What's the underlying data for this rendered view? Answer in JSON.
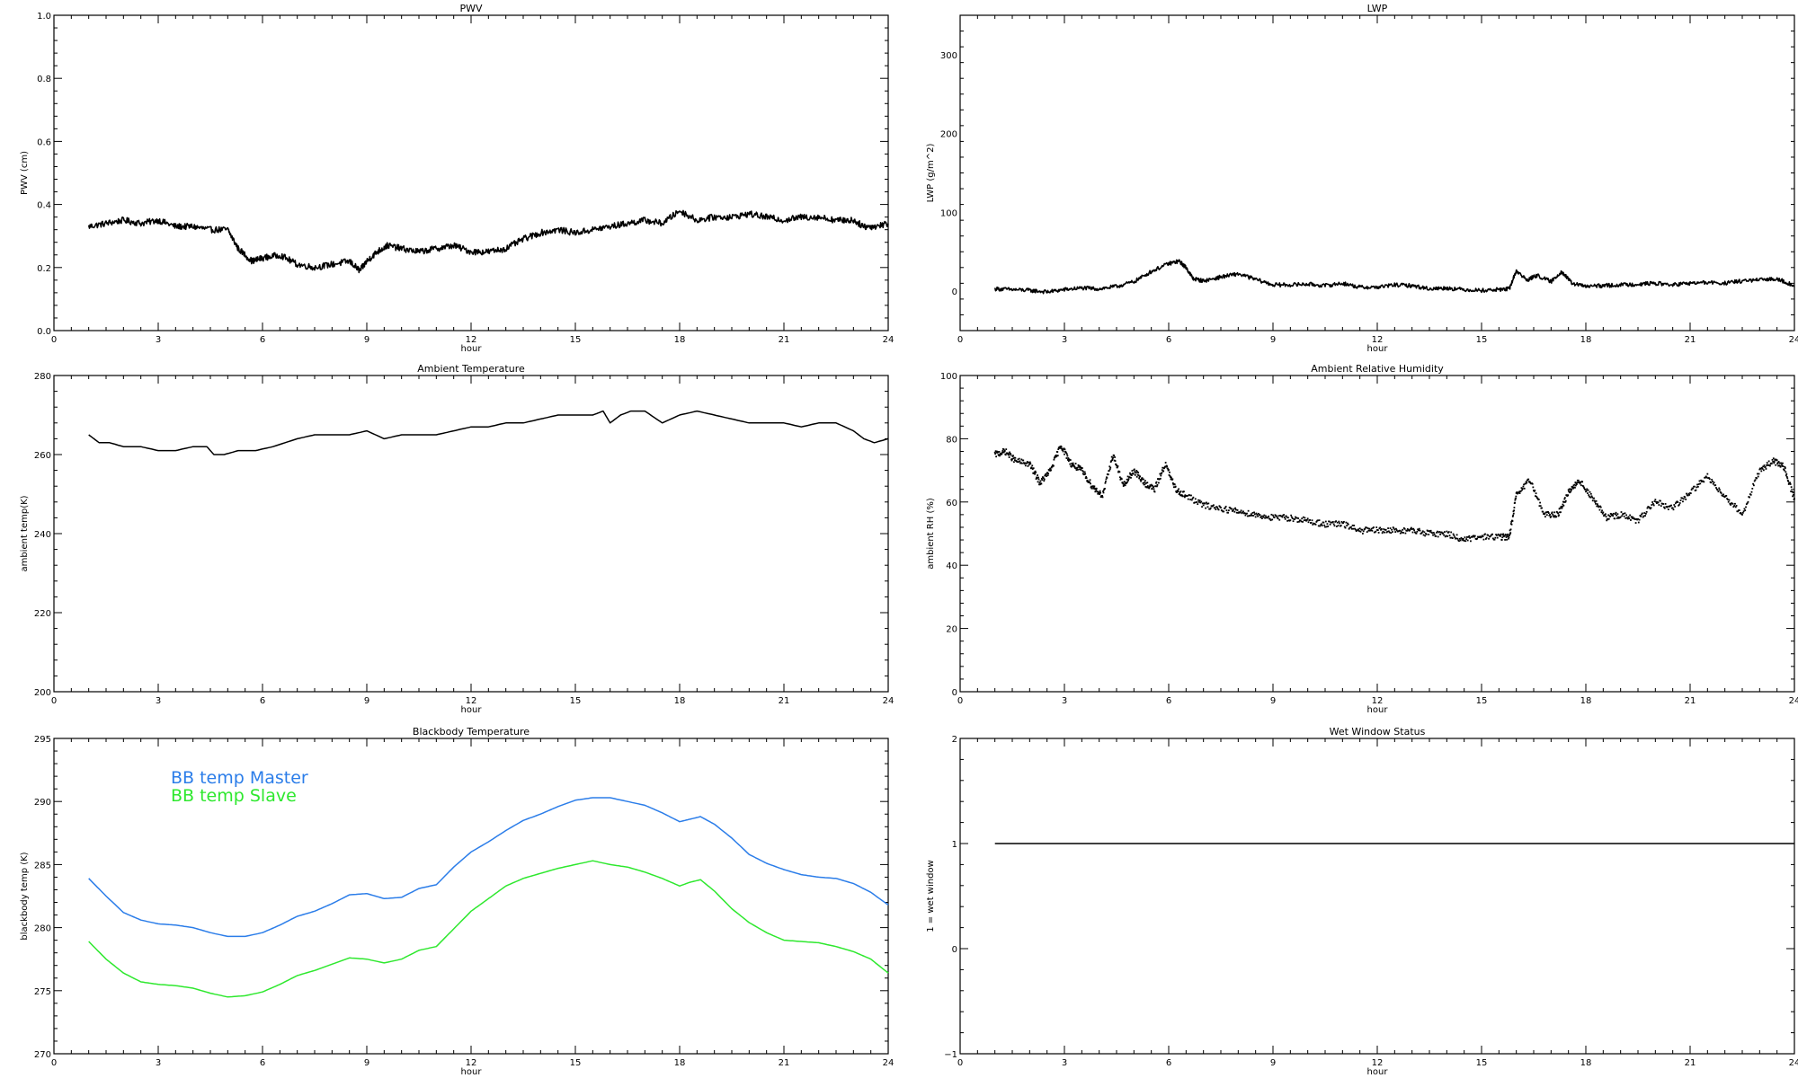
{
  "colors": {
    "black": "#000000",
    "bb_master": "#2b7de9",
    "bb_slave": "#2ee82e"
  },
  "chart_data": [
    {
      "id": "pwv",
      "type": "line",
      "title": "PWV",
      "xlabel": "hour",
      "ylabel": "PWV (cm)",
      "xlim": [
        0,
        24
      ],
      "ylim": [
        0.0,
        1.0
      ],
      "xticks": [
        0,
        3,
        6,
        9,
        12,
        15,
        18,
        21,
        24
      ],
      "xtick_labels": [
        "0",
        "3",
        "6",
        "9",
        "12",
        "15",
        "18",
        "21",
        "24"
      ],
      "yticks": [
        0.0,
        0.2,
        0.4,
        0.6,
        0.8,
        1.0
      ],
      "ytick_labels": [
        "0.0",
        "0.2",
        "0.4",
        "0.6",
        "0.8",
        "1.0"
      ],
      "noise": 0.01,
      "series": [
        {
          "color": "#000000",
          "x": [
            1.0,
            1.5,
            2.0,
            2.5,
            3.0,
            3.5,
            4.0,
            4.5,
            5.0,
            5.3,
            5.7,
            6.0,
            6.5,
            7.0,
            7.5,
            8.0,
            8.5,
            8.8,
            9.0,
            9.3,
            9.6,
            10.0,
            10.5,
            11.0,
            11.5,
            12.0,
            12.5,
            13.0,
            13.5,
            14.0,
            14.5,
            15.0,
            15.5,
            16.0,
            16.5,
            17.0,
            17.5,
            18.0,
            18.5,
            19.0,
            19.5,
            20.0,
            20.5,
            21.0,
            21.5,
            22.0,
            22.5,
            23.0,
            23.3,
            23.6,
            24.0
          ],
          "y": [
            0.33,
            0.34,
            0.35,
            0.34,
            0.35,
            0.33,
            0.33,
            0.32,
            0.32,
            0.26,
            0.22,
            0.23,
            0.24,
            0.21,
            0.2,
            0.21,
            0.22,
            0.19,
            0.22,
            0.25,
            0.27,
            0.26,
            0.25,
            0.26,
            0.27,
            0.25,
            0.25,
            0.26,
            0.29,
            0.31,
            0.32,
            0.31,
            0.32,
            0.33,
            0.34,
            0.35,
            0.34,
            0.38,
            0.35,
            0.36,
            0.36,
            0.37,
            0.36,
            0.35,
            0.36,
            0.36,
            0.35,
            0.35,
            0.33,
            0.33,
            0.34
          ]
        }
      ]
    },
    {
      "id": "lwp",
      "type": "line",
      "title": "LWP",
      "xlabel": "hour",
      "ylabel": "LWP (g/m^2)",
      "xlim": [
        0,
        24
      ],
      "ylim": [
        -50,
        350
      ],
      "xticks": [
        0,
        3,
        6,
        9,
        12,
        15,
        18,
        21,
        24
      ],
      "xtick_labels": [
        "0",
        "3",
        "6",
        "9",
        "12",
        "15",
        "18",
        "21",
        "24"
      ],
      "yticks": [
        0,
        100,
        200,
        300
      ],
      "ytick_labels": [
        "0",
        "100",
        "200",
        "300"
      ],
      "noise": 2.5,
      "series": [
        {
          "color": "#000000",
          "x": [
            1.0,
            1.5,
            2.0,
            2.5,
            3.0,
            3.5,
            4.0,
            4.5,
            5.0,
            5.5,
            6.0,
            6.3,
            6.5,
            6.7,
            7.0,
            7.5,
            8.0,
            8.5,
            9.0,
            9.5,
            10.0,
            10.5,
            11.0,
            11.5,
            12.0,
            12.5,
            13.0,
            13.5,
            14.0,
            14.5,
            15.0,
            15.5,
            15.8,
            16.0,
            16.3,
            16.6,
            17.0,
            17.3,
            17.6,
            18.0,
            18.5,
            19.0,
            19.5,
            20.0,
            20.5,
            21.0,
            21.5,
            22.0,
            22.5,
            23.0,
            23.5,
            24.0
          ],
          "y": [
            3,
            2,
            1,
            -1,
            2,
            4,
            3,
            6,
            12,
            25,
            35,
            38,
            30,
            16,
            13,
            18,
            22,
            15,
            8,
            8,
            9,
            7,
            10,
            5,
            5,
            8,
            7,
            3,
            4,
            2,
            1,
            2,
            3,
            26,
            14,
            20,
            12,
            25,
            10,
            6,
            7,
            8,
            9,
            10,
            8,
            10,
            11,
            10,
            13,
            14,
            16,
            7
          ]
        }
      ]
    },
    {
      "id": "ambient_temp",
      "type": "line",
      "title": "Ambient Temperature",
      "xlabel": "hour",
      "ylabel": "ambient temp(K)",
      "xlim": [
        0,
        24
      ],
      "ylim": [
        200,
        280
      ],
      "xticks": [
        0,
        3,
        6,
        9,
        12,
        15,
        18,
        21,
        24
      ],
      "xtick_labels": [
        "0",
        "3",
        "6",
        "9",
        "12",
        "15",
        "18",
        "21",
        "24"
      ],
      "yticks": [
        200,
        220,
        240,
        260,
        280
      ],
      "ytick_labels": [
        "200",
        "220",
        "240",
        "260",
        "280"
      ],
      "noise": 0,
      "series": [
        {
          "color": "#000000",
          "x": [
            1.0,
            1.3,
            1.6,
            2.0,
            2.5,
            3.0,
            3.5,
            4.0,
            4.4,
            4.6,
            4.9,
            5.3,
            5.8,
            6.3,
            7.0,
            7.5,
            8.0,
            8.5,
            9.0,
            9.5,
            10.0,
            10.5,
            11.0,
            11.5,
            12.0,
            12.5,
            13.0,
            13.5,
            14.0,
            14.5,
            15.0,
            15.5,
            15.8,
            16.0,
            16.3,
            16.6,
            17.0,
            17.5,
            18.0,
            18.5,
            19.0,
            19.5,
            20.0,
            20.5,
            21.0,
            21.5,
            22.0,
            22.5,
            23.0,
            23.3,
            23.6,
            24.0
          ],
          "y": [
            265,
            263,
            263,
            262,
            262,
            261,
            261,
            262,
            262,
            260,
            260,
            261,
            261,
            262,
            264,
            265,
            265,
            265,
            266,
            264,
            265,
            265,
            265,
            266,
            267,
            267,
            268,
            268,
            269,
            270,
            270,
            270,
            271,
            268,
            270,
            271,
            271,
            268,
            270,
            271,
            270,
            269,
            268,
            268,
            268,
            267,
            268,
            268,
            266,
            264,
            263,
            264
          ]
        }
      ]
    },
    {
      "id": "ambient_rh",
      "type": "scatter",
      "title": "Ambient Relative Humidity",
      "xlabel": "hour",
      "ylabel": "ambient RH (%)",
      "xlim": [
        0,
        24
      ],
      "ylim": [
        0,
        100
      ],
      "xticks": [
        0,
        3,
        6,
        9,
        12,
        15,
        18,
        21,
        24
      ],
      "xtick_labels": [
        "0",
        "3",
        "6",
        "9",
        "12",
        "15",
        "18",
        "21",
        "24"
      ],
      "yticks": [
        0,
        20,
        40,
        60,
        80,
        100
      ],
      "ytick_labels": [
        "0",
        "20",
        "40",
        "60",
        "80",
        "100"
      ],
      "noise": 1.0,
      "series": [
        {
          "color": "#000000",
          "x": [
            1.0,
            1.3,
            1.6,
            2.0,
            2.3,
            2.6,
            2.9,
            3.2,
            3.5,
            3.8,
            4.1,
            4.4,
            4.7,
            5.0,
            5.3,
            5.6,
            5.9,
            6.2,
            6.5,
            7.0,
            7.5,
            8.0,
            8.5,
            9.0,
            9.5,
            10.0,
            10.5,
            11.0,
            11.5,
            12.0,
            12.5,
            13.0,
            13.5,
            14.0,
            14.5,
            15.0,
            15.5,
            15.8,
            16.0,
            16.4,
            16.8,
            17.2,
            17.5,
            17.8,
            18.2,
            18.6,
            19.0,
            19.5,
            20.0,
            20.5,
            21.0,
            21.5,
            22.0,
            22.5,
            23.0,
            23.4,
            23.7,
            24.0
          ],
          "y": [
            75,
            76,
            73,
            72,
            66,
            70,
            78,
            72,
            70,
            65,
            62,
            75,
            65,
            70,
            66,
            64,
            72,
            64,
            62,
            59,
            58,
            57,
            56,
            55,
            55,
            54,
            53,
            53,
            51,
            51,
            51,
            51,
            50,
            50,
            48,
            49,
            49,
            49,
            62,
            67,
            56,
            56,
            63,
            67,
            61,
            55,
            56,
            54,
            60,
            58,
            63,
            68,
            62,
            56,
            70,
            73,
            71,
            61
          ]
        }
      ]
    },
    {
      "id": "bb_temp",
      "type": "line",
      "title": "Blackbody Temperature",
      "xlabel": "hour",
      "ylabel": "blackbody temp (K)",
      "xlim": [
        0,
        24
      ],
      "ylim": [
        270,
        295
      ],
      "xticks": [
        0,
        3,
        6,
        9,
        12,
        15,
        18,
        21,
        24
      ],
      "xtick_labels": [
        "0",
        "3",
        "6",
        "9",
        "12",
        "15",
        "18",
        "21",
        "24"
      ],
      "yticks": [
        270,
        275,
        280,
        285,
        290,
        295
      ],
      "ytick_labels": [
        "270",
        "275",
        "280",
        "285",
        "290",
        "295"
      ],
      "noise": 0,
      "legend": {
        "placement": "top-left"
      },
      "series": [
        {
          "name": "BB temp Master",
          "color": "#2b7de9",
          "x": [
            1.0,
            1.5,
            2.0,
            2.5,
            3.0,
            3.5,
            4.0,
            4.5,
            5.0,
            5.5,
            6.0,
            6.5,
            7.0,
            7.5,
            8.0,
            8.5,
            9.0,
            9.5,
            10.0,
            10.5,
            11.0,
            11.5,
            12.0,
            12.5,
            13.0,
            13.5,
            14.0,
            14.5,
            15.0,
            15.5,
            16.0,
            16.5,
            17.0,
            17.5,
            18.0,
            18.3,
            18.6,
            19.0,
            19.5,
            20.0,
            20.5,
            21.0,
            21.5,
            22.0,
            22.5,
            23.0,
            23.5,
            24.0
          ],
          "y": [
            283.9,
            282.5,
            281.2,
            280.6,
            280.3,
            280.2,
            280.0,
            279.6,
            279.3,
            279.3,
            279.6,
            280.2,
            280.9,
            281.3,
            281.9,
            282.6,
            282.7,
            282.3,
            282.4,
            283.1,
            283.4,
            284.8,
            286.0,
            286.8,
            287.7,
            288.5,
            289.0,
            289.6,
            290.1,
            290.3,
            290.3,
            290.0,
            289.7,
            289.1,
            288.4,
            288.6,
            288.8,
            288.2,
            287.1,
            285.8,
            285.1,
            284.6,
            284.2,
            284.0,
            283.9,
            283.5,
            282.8,
            281.8
          ]
        },
        {
          "name": "BB temp Slave",
          "color": "#2ee82e",
          "x": [
            1.0,
            1.5,
            2.0,
            2.5,
            3.0,
            3.5,
            4.0,
            4.5,
            5.0,
            5.5,
            6.0,
            6.5,
            7.0,
            7.5,
            8.0,
            8.5,
            9.0,
            9.5,
            10.0,
            10.5,
            11.0,
            11.5,
            12.0,
            12.5,
            13.0,
            13.5,
            14.0,
            14.5,
            15.0,
            15.5,
            16.0,
            16.5,
            17.0,
            17.5,
            18.0,
            18.3,
            18.6,
            19.0,
            19.5,
            20.0,
            20.5,
            21.0,
            21.5,
            22.0,
            22.5,
            23.0,
            23.5,
            24.0
          ],
          "y": [
            278.9,
            277.5,
            276.4,
            275.7,
            275.5,
            275.4,
            275.2,
            274.8,
            274.5,
            274.6,
            274.9,
            275.5,
            276.2,
            276.6,
            277.1,
            277.6,
            277.5,
            277.2,
            277.5,
            278.2,
            278.5,
            279.9,
            281.3,
            282.3,
            283.3,
            283.9,
            284.3,
            284.7,
            285.0,
            285.3,
            285.0,
            284.8,
            284.4,
            283.9,
            283.3,
            283.6,
            283.8,
            282.9,
            281.5,
            280.4,
            279.6,
            279.0,
            278.9,
            278.8,
            278.5,
            278.1,
            277.5,
            276.4
          ]
        }
      ]
    },
    {
      "id": "wet_window",
      "type": "line",
      "title": "Wet Window Status",
      "xlabel": "hour",
      "ylabel": "1 = wet window",
      "xlim": [
        0,
        24
      ],
      "ylim": [
        -1,
        2
      ],
      "xticks": [
        0,
        3,
        6,
        9,
        12,
        15,
        18,
        21,
        24
      ],
      "xtick_labels": [
        "0",
        "3",
        "6",
        "9",
        "12",
        "15",
        "18",
        "21",
        "24"
      ],
      "yticks": [
        -1,
        0,
        1,
        2
      ],
      "ytick_labels": [
        "−1",
        "0",
        "1",
        "2"
      ],
      "noise": 0,
      "series": [
        {
          "color": "#000000",
          "x": [
            1.0,
            24.0
          ],
          "y": [
            1,
            1
          ]
        }
      ]
    }
  ]
}
